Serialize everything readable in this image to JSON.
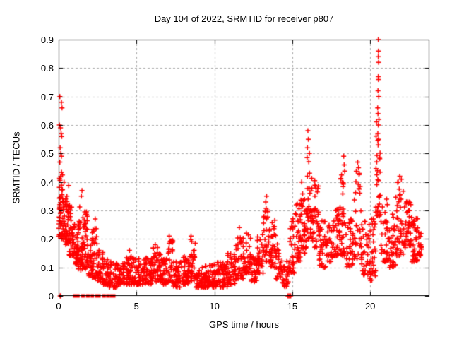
{
  "chart_data": {
    "type": "scatter",
    "title": "Day 104 of 2022, SRMTID for receiver p807",
    "xlabel": "GPS time / hours",
    "ylabel": "SRMTID / TECUs",
    "xlim": [
      0,
      23.8
    ],
    "ylim": [
      0,
      0.9
    ],
    "xticks": [
      0,
      5,
      10,
      15,
      20
    ],
    "yticks": [
      0,
      0.1,
      0.2,
      0.3,
      0.4,
      0.5,
      0.6,
      0.7,
      0.8,
      0.9
    ],
    "grid": true,
    "legend": "none",
    "marker": "plus",
    "colors": {
      "marker": "#ff0000",
      "grid": "#a9a9a9",
      "axis": "#000000",
      "background": "#ffffff"
    },
    "seed": 1234567,
    "series": {
      "name": "SRMTID",
      "band_envelope": [
        [
          0.0,
          0.3,
          0.2,
          0.46,
          52
        ],
        [
          0.3,
          0.65,
          0.18,
          0.4,
          46
        ],
        [
          0.65,
          0.95,
          0.14,
          0.33,
          38
        ],
        [
          0.95,
          1.25,
          0.11,
          0.26,
          34
        ],
        [
          1.25,
          1.55,
          0.09,
          0.32,
          36
        ],
        [
          1.55,
          1.85,
          0.09,
          0.3,
          36
        ],
        [
          1.85,
          2.15,
          0.07,
          0.2,
          30
        ],
        [
          2.15,
          2.5,
          0.06,
          0.24,
          32
        ],
        [
          2.5,
          2.85,
          0.05,
          0.16,
          32
        ],
        [
          2.85,
          3.25,
          0.04,
          0.13,
          34
        ],
        [
          3.25,
          3.75,
          0.03,
          0.12,
          38
        ],
        [
          3.75,
          4.3,
          0.04,
          0.12,
          42
        ],
        [
          4.3,
          4.85,
          0.04,
          0.14,
          44
        ],
        [
          4.85,
          5.45,
          0.04,
          0.13,
          46
        ],
        [
          5.45,
          6.0,
          0.04,
          0.14,
          46
        ],
        [
          6.0,
          6.55,
          0.05,
          0.17,
          44
        ],
        [
          6.55,
          7.0,
          0.04,
          0.14,
          40
        ],
        [
          7.0,
          7.35,
          0.05,
          0.2,
          32
        ],
        [
          7.35,
          7.85,
          0.03,
          0.12,
          42
        ],
        [
          7.85,
          8.35,
          0.04,
          0.14,
          42
        ],
        [
          8.35,
          8.8,
          0.05,
          0.2,
          38
        ],
        [
          8.8,
          9.35,
          0.03,
          0.11,
          44
        ],
        [
          9.35,
          9.85,
          0.03,
          0.11,
          44
        ],
        [
          9.85,
          10.35,
          0.03,
          0.12,
          44
        ],
        [
          10.35,
          10.85,
          0.03,
          0.13,
          42
        ],
        [
          10.85,
          11.35,
          0.04,
          0.15,
          40
        ],
        [
          11.35,
          11.85,
          0.06,
          0.21,
          38
        ],
        [
          11.85,
          12.35,
          0.08,
          0.22,
          38
        ],
        [
          12.35,
          12.75,
          0.05,
          0.14,
          32
        ],
        [
          12.75,
          13.15,
          0.08,
          0.22,
          34
        ],
        [
          13.15,
          13.55,
          0.12,
          0.32,
          36
        ],
        [
          13.55,
          13.95,
          0.1,
          0.27,
          34
        ],
        [
          13.95,
          14.35,
          0.06,
          0.19,
          28
        ],
        [
          14.35,
          14.75,
          0.03,
          0.13,
          26
        ],
        [
          14.75,
          15.15,
          0.08,
          0.28,
          30
        ],
        [
          15.15,
          15.55,
          0.12,
          0.33,
          34
        ],
        [
          15.55,
          15.9,
          0.15,
          0.38,
          34
        ],
        [
          15.9,
          16.25,
          0.2,
          0.5,
          38
        ],
        [
          16.25,
          16.7,
          0.17,
          0.41,
          38
        ],
        [
          16.7,
          17.15,
          0.1,
          0.27,
          34
        ],
        [
          17.15,
          17.65,
          0.12,
          0.29,
          34
        ],
        [
          17.65,
          18.05,
          0.14,
          0.31,
          34
        ],
        [
          18.05,
          18.45,
          0.14,
          0.44,
          36
        ],
        [
          18.45,
          18.95,
          0.1,
          0.27,
          34
        ],
        [
          18.95,
          19.45,
          0.13,
          0.44,
          36
        ],
        [
          19.45,
          19.95,
          0.07,
          0.29,
          36
        ],
        [
          19.95,
          20.35,
          0.05,
          0.27,
          32
        ],
        [
          20.35,
          20.68,
          0.28,
          0.62,
          30
        ],
        [
          20.68,
          21.15,
          0.12,
          0.34,
          34
        ],
        [
          21.15,
          21.65,
          0.1,
          0.29,
          34
        ],
        [
          21.65,
          22.15,
          0.14,
          0.4,
          38
        ],
        [
          22.15,
          22.65,
          0.17,
          0.33,
          46
        ],
        [
          22.65,
          23.05,
          0.12,
          0.29,
          38
        ],
        [
          23.05,
          23.3,
          0.14,
          0.25,
          20
        ]
      ],
      "peak_points": [
        [
          0.08,
          0.7
        ],
        [
          0.18,
          0.68
        ],
        [
          0.22,
          0.66
        ],
        [
          0.05,
          0.6
        ],
        [
          0.12,
          0.59
        ],
        [
          0.16,
          0.57
        ],
        [
          0.2,
          0.56
        ],
        [
          0.1,
          0.52
        ],
        [
          0.14,
          0.5
        ],
        [
          0.18,
          0.49
        ],
        [
          0.08,
          0.47
        ],
        [
          1.5,
          0.37
        ],
        [
          1.46,
          0.35
        ],
        [
          2.35,
          0.27
        ],
        [
          4.55,
          0.16
        ],
        [
          6.2,
          0.18
        ],
        [
          7.1,
          0.21
        ],
        [
          7.15,
          0.19
        ],
        [
          8.5,
          0.21
        ],
        [
          8.55,
          0.19
        ],
        [
          11.6,
          0.24
        ],
        [
          12.05,
          0.22
        ],
        [
          13.35,
          0.35
        ],
        [
          13.3,
          0.33
        ],
        [
          15.6,
          0.4
        ],
        [
          16.0,
          0.58
        ],
        [
          16.03,
          0.55
        ],
        [
          15.97,
          0.52
        ],
        [
          16.1,
          0.5
        ],
        [
          17.8,
          0.3
        ],
        [
          18.3,
          0.49
        ],
        [
          18.33,
          0.46
        ],
        [
          19.2,
          0.47
        ],
        [
          19.25,
          0.45
        ],
        [
          19.3,
          0.43
        ],
        [
          20.52,
          0.9
        ],
        [
          20.53,
          0.86
        ],
        [
          20.52,
          0.84
        ],
        [
          20.54,
          0.82
        ],
        [
          20.52,
          0.77
        ],
        [
          20.53,
          0.76
        ],
        [
          20.5,
          0.72
        ],
        [
          20.55,
          0.7
        ],
        [
          20.48,
          0.66
        ],
        [
          20.5,
          0.64
        ],
        [
          20.56,
          0.62
        ],
        [
          20.52,
          0.6
        ],
        [
          20.49,
          0.57
        ],
        [
          20.54,
          0.55
        ],
        [
          20.51,
          0.53
        ],
        [
          21.9,
          0.42
        ],
        [
          22.0,
          0.41
        ],
        [
          21.8,
          0.4
        ]
      ],
      "zero_value_points": [
        0.1,
        0.14,
        14.72,
        14.78,
        14.84,
        14.9
      ],
      "zero_value_runs": [
        [
          0.92,
          1.35
        ],
        [
          1.45,
          1.6
        ],
        [
          1.75,
          2.0
        ],
        [
          2.05,
          2.25
        ],
        [
          2.35,
          2.7
        ],
        [
          2.8,
          2.95
        ],
        [
          3.05,
          3.18
        ],
        [
          3.28,
          3.65
        ]
      ]
    }
  }
}
